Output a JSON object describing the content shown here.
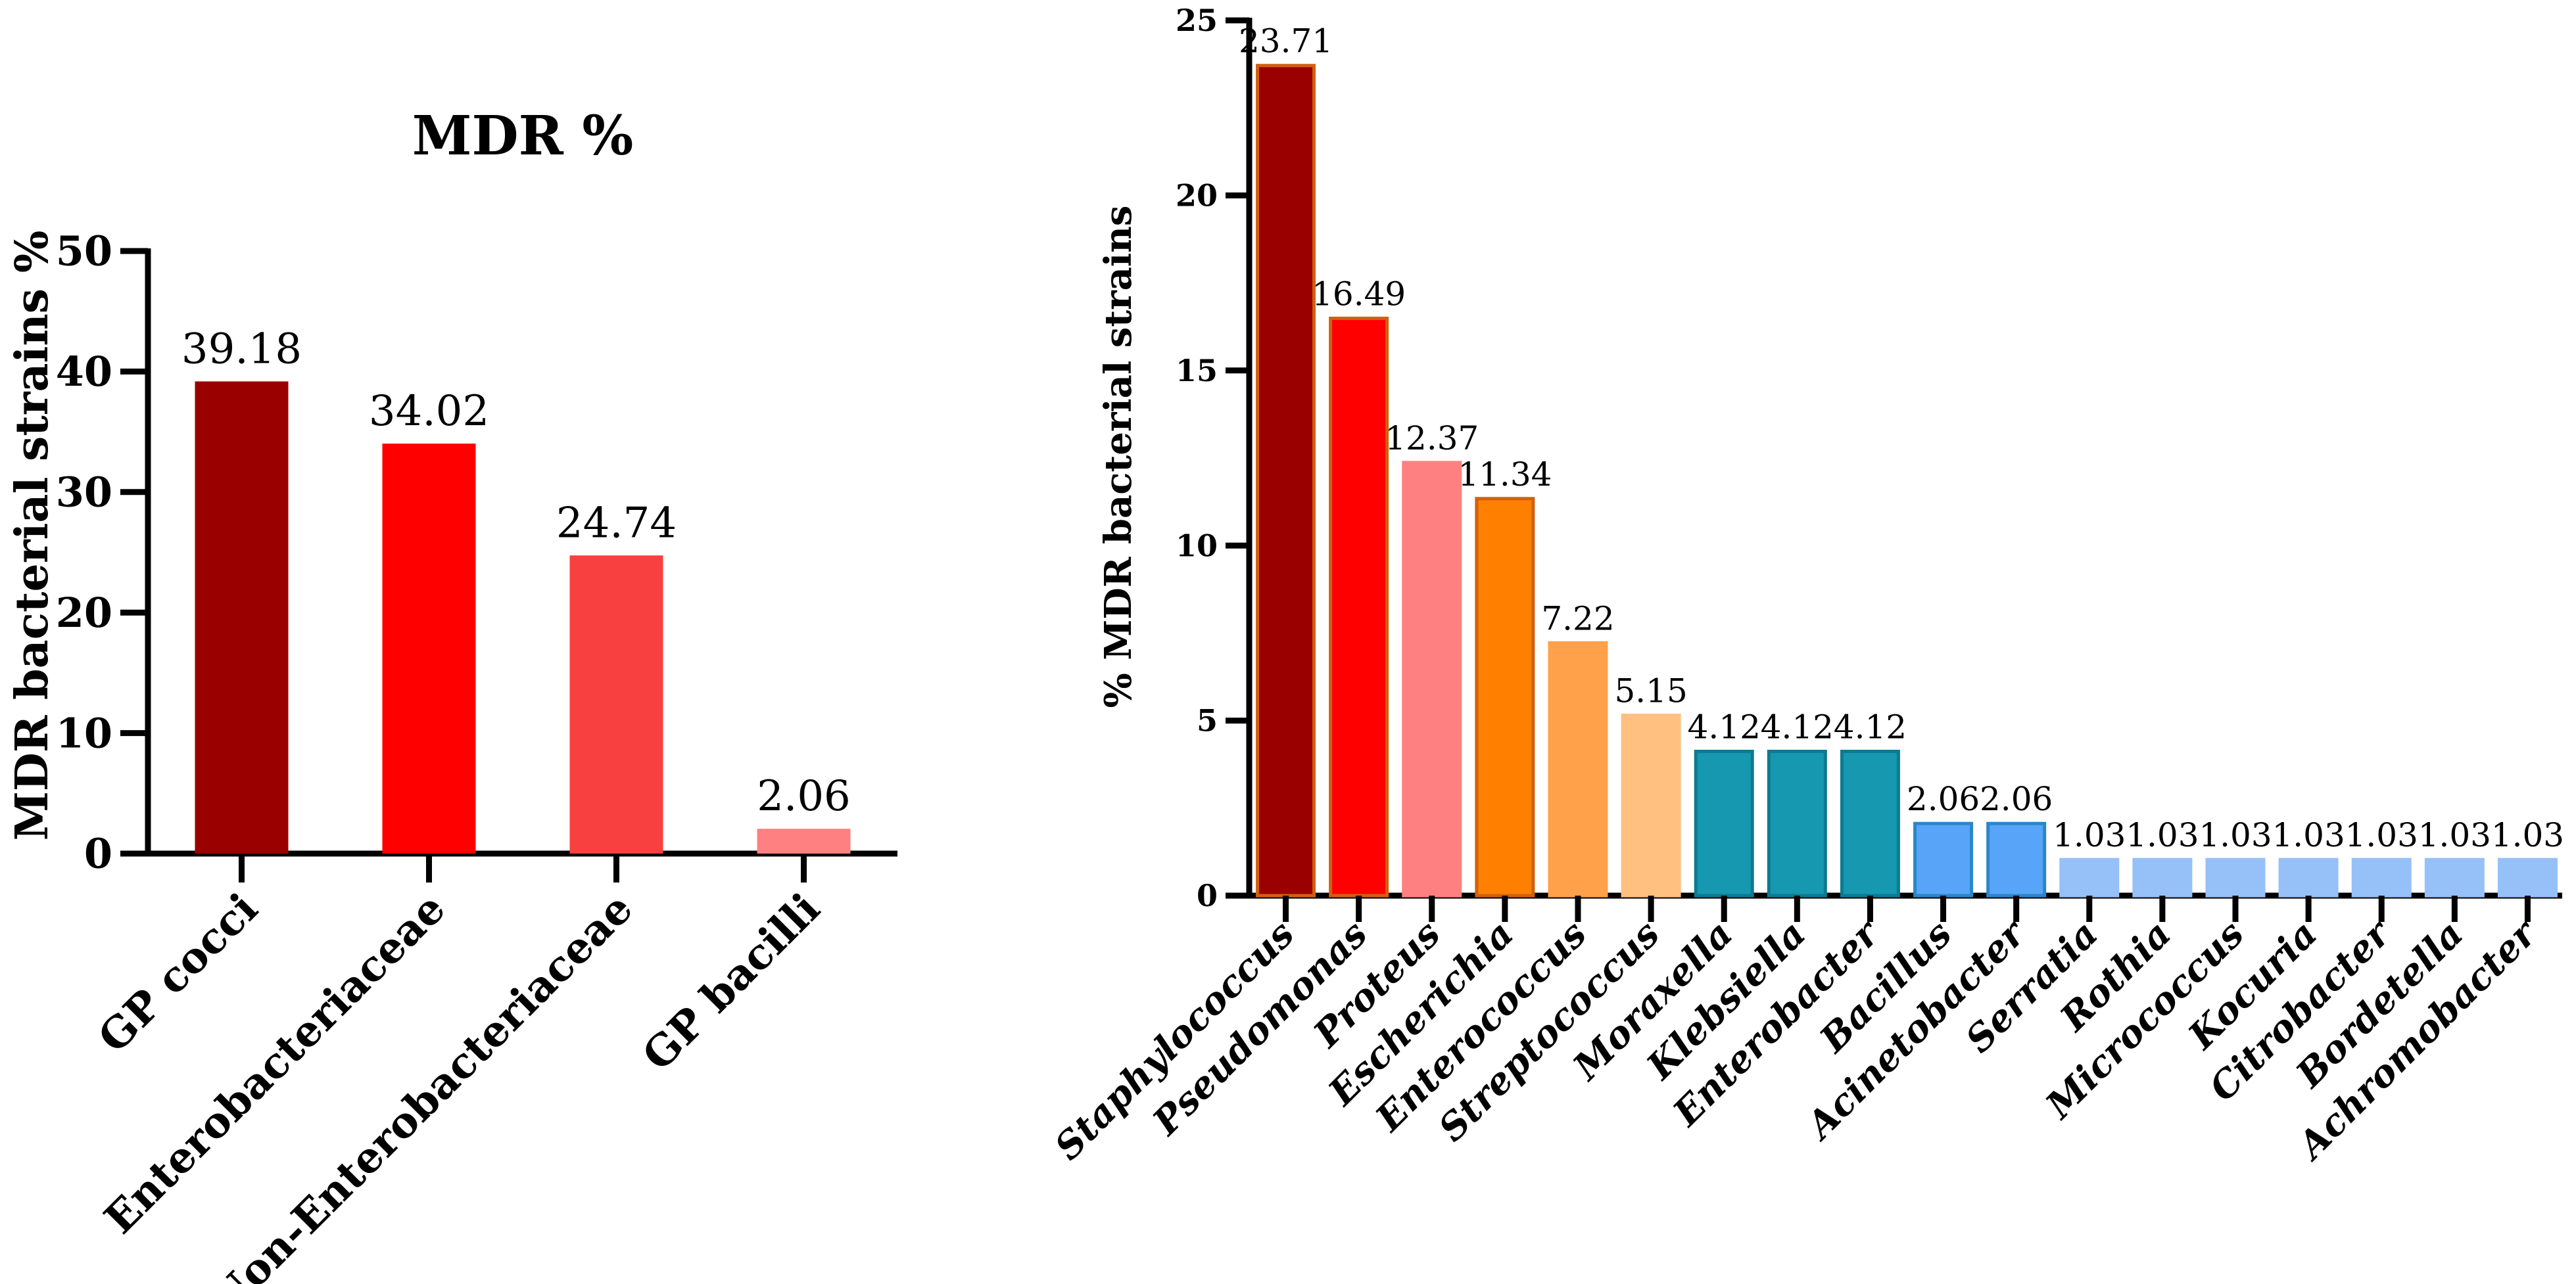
{
  "chart_data": [
    {
      "type": "bar",
      "title": "MDR %",
      "xlabel": "",
      "ylabel": "MDR bacterial strains %",
      "ylim": [
        0,
        50
      ],
      "yticks": [
        0,
        10,
        20,
        30,
        40,
        50
      ],
      "tick_labels": [
        "0",
        "10",
        "20",
        "30",
        "40",
        "50"
      ],
      "categories": [
        "GP cocci",
        "Enterobacteriaceae",
        "Non-Enterobacteriaceae",
        "GP bacilli"
      ],
      "values": [
        39.18,
        34.02,
        24.74,
        2.06
      ],
      "value_labels": [
        "39.18",
        "34.02",
        "24.74",
        "2.06"
      ],
      "colors": [
        "#9b0000",
        "#ff0000",
        "#f94040",
        "#ff8080"
      ],
      "grid": false
    },
    {
      "type": "bar",
      "title": "",
      "xlabel": "",
      "ylabel": "% MDR bacterial strains",
      "ylim": [
        0,
        25
      ],
      "yticks": [
        0,
        5,
        10,
        15,
        20,
        25
      ],
      "tick_labels": [
        "0",
        "5",
        "10",
        "15",
        "20",
        "25"
      ],
      "categories": [
        "Staphylococcus",
        "Pseudomonas",
        "Proteus",
        "Escherichia",
        "Enterococcus",
        "Streptococcus",
        "Moraxella",
        "Klebsiella",
        "Enterobacter",
        "Bacillus",
        "Acinetobacter",
        "Serratia",
        "Rothia",
        "Micrococcus",
        "Kocuria",
        "Citrobacter",
        "Bordetella",
        "Achromobacter"
      ],
      "values": [
        23.71,
        16.49,
        12.37,
        11.34,
        7.22,
        5.15,
        4.12,
        4.12,
        4.12,
        2.06,
        2.06,
        1.03,
        1.03,
        1.03,
        1.03,
        1.03,
        1.03,
        1.03
      ],
      "value_labels": [
        "23.71",
        "16.49",
        "12.37",
        "11.34",
        "7.22",
        "5.15",
        "4.12",
        "4.12",
        "4.12",
        "2.06",
        "2.06",
        "1.03",
        "1.03",
        "1.03",
        "1.03",
        "1.03",
        "1.03",
        "1.03"
      ],
      "colors": [
        "#9b0000",
        "#ff0000",
        "#ff8080",
        "#ff8000",
        "#ffa04a",
        "#ffc080",
        "#1598b0",
        "#1598b0",
        "#1598b0",
        "#58a4f8",
        "#58a4f8",
        "#96c0f8",
        "#96c0f8",
        "#96c0f8",
        "#96c0f8",
        "#96c0f8",
        "#96c0f8",
        "#96c0f8"
      ],
      "outlines": [
        "#d06010",
        "#d06010",
        "#ff8080",
        "#d06010",
        "#ffa04a",
        "#ffc080",
        "#0d7a90",
        "#0d7a90",
        "#0d7a90",
        "#2a86c8",
        "#2a86c8",
        "#96c0f8",
        "#96c0f8",
        "#96c0f8",
        "#96c0f8",
        "#96c0f8",
        "#96c0f8",
        "#96c0f8"
      ],
      "grid": false
    }
  ]
}
